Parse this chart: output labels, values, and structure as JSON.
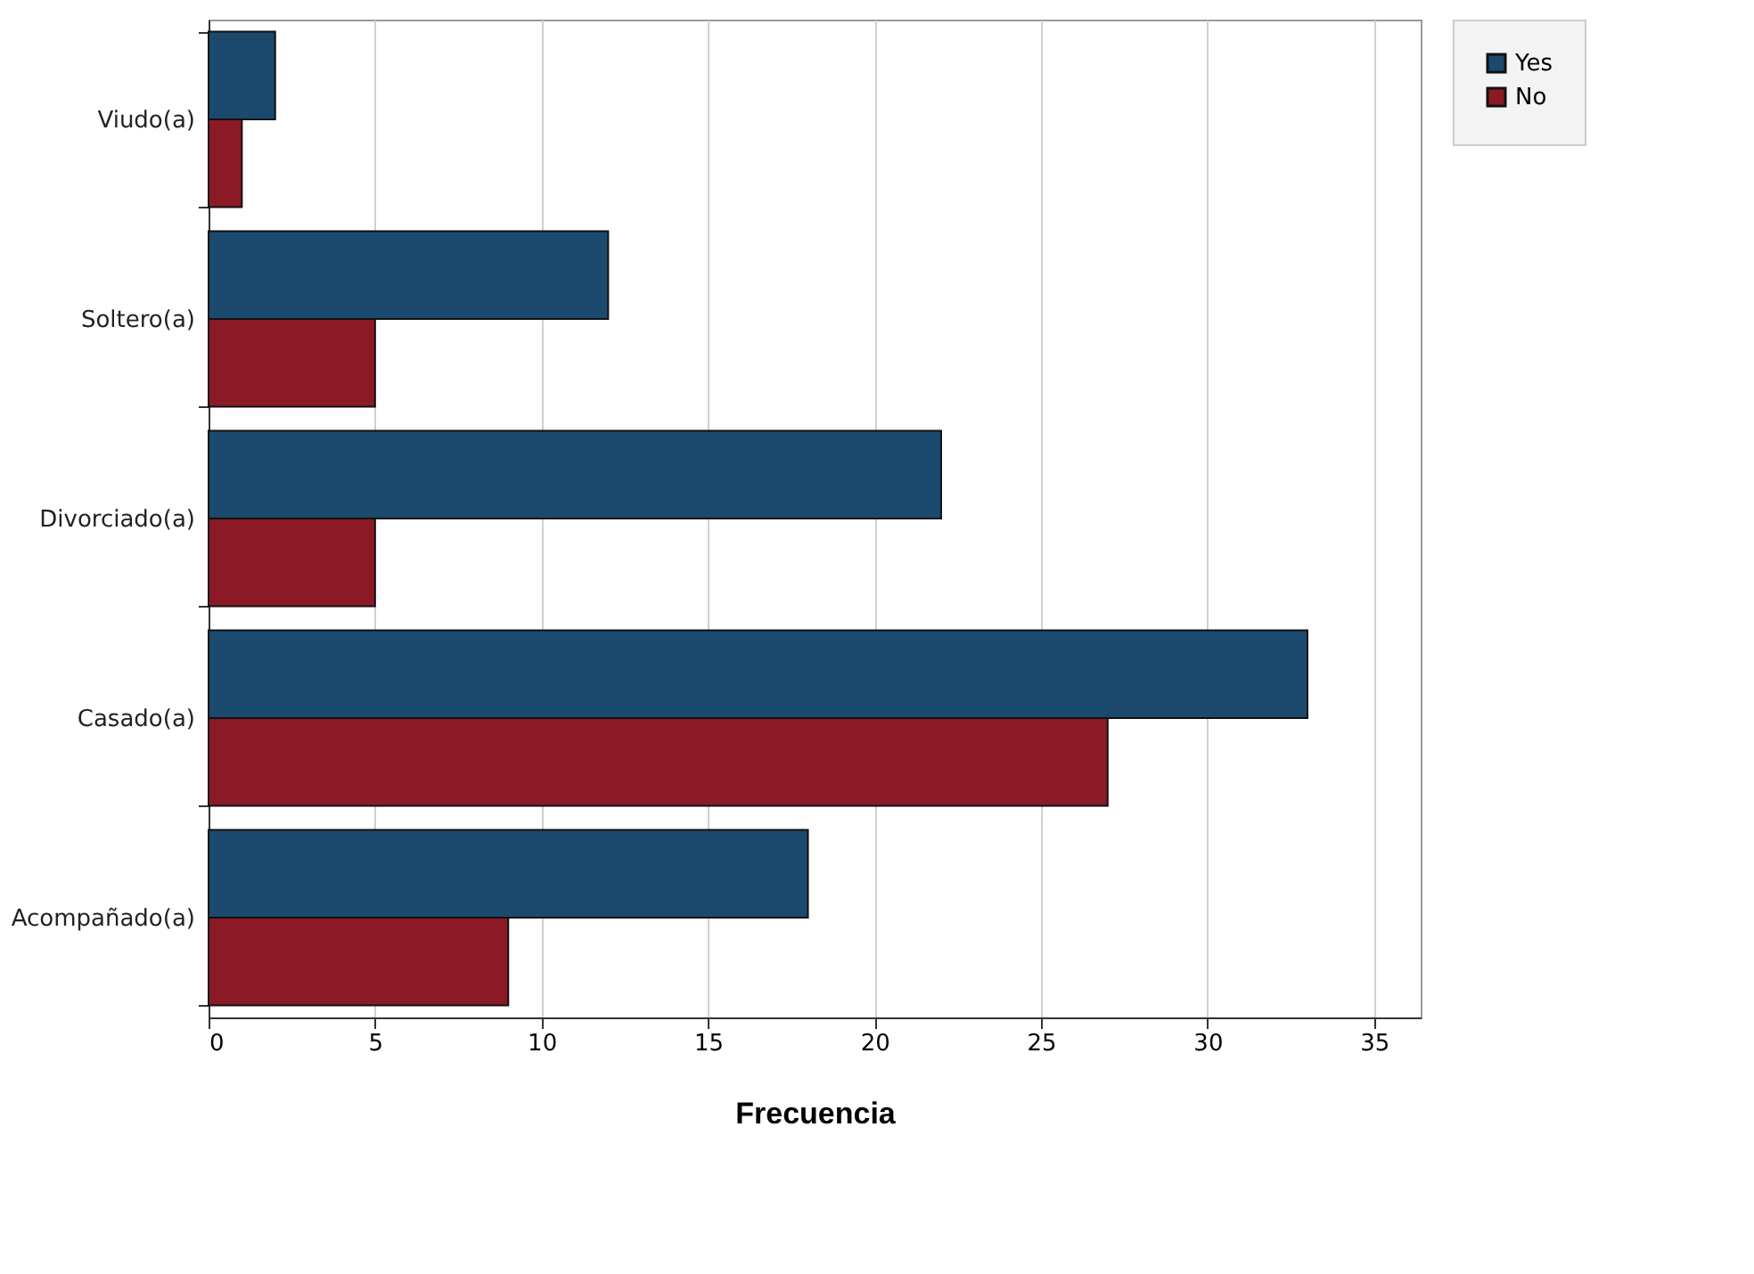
{
  "chart_data": {
    "type": "bar",
    "orientation": "horizontal",
    "xlabel": "Frecuencia",
    "categories": [
      "Viudo(a)",
      "Soltero(a)",
      "Divorciado(a)",
      "Casado(a)",
      "Acompañado(a)"
    ],
    "series": [
      {
        "name": "Yes",
        "color": "#1b4a6e",
        "values": [
          2,
          12,
          22,
          33,
          18
        ]
      },
      {
        "name": "No",
        "color": "#8c1a26",
        "values": [
          1,
          5,
          5,
          27,
          9
        ]
      }
    ],
    "xlim": [
      0,
      36.4
    ],
    "xticks": [
      0,
      5,
      10,
      15,
      20,
      25,
      30,
      35
    ],
    "grid": "x",
    "legend": "right"
  }
}
